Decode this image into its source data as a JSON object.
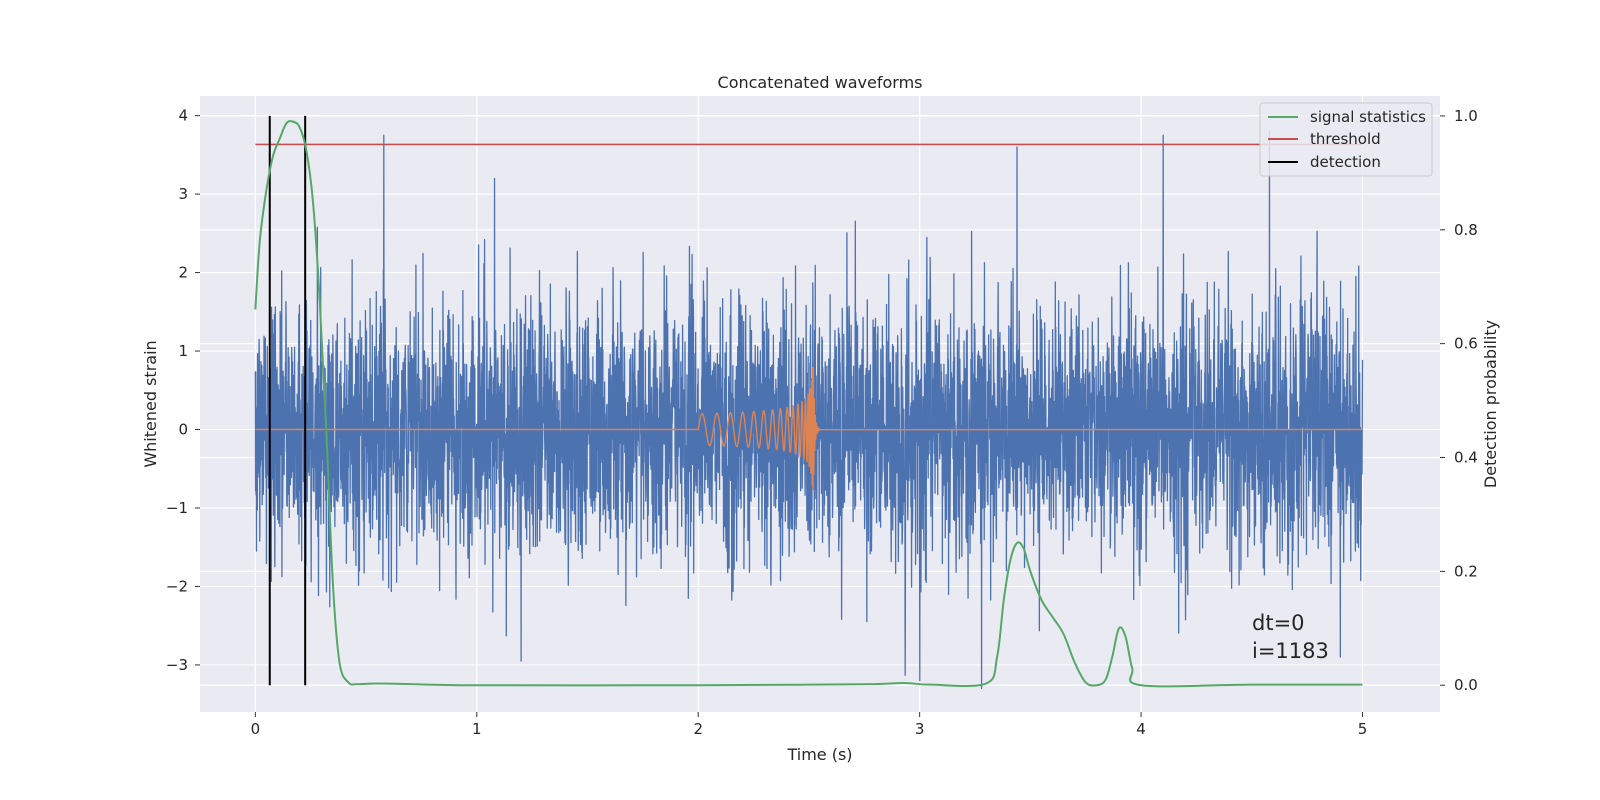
{
  "chart_data": {
    "type": "line",
    "title": "Concatenated waveforms",
    "xlabel": "Time (s)",
    "ylabel": "Whitened strain",
    "y2label": "Detection probability",
    "xlim": [
      -0.25,
      5.35
    ],
    "ylim": [
      -3.6,
      4.25
    ],
    "y2lim": [
      -0.047,
      1.035
    ],
    "xticks": [
      0,
      1,
      2,
      3,
      4,
      5
    ],
    "yticks": [
      -3,
      -2,
      -1,
      0,
      1,
      2,
      3,
      4
    ],
    "y2ticks": [
      0.0,
      0.2,
      0.4,
      0.6,
      0.8,
      1.0
    ],
    "y2tick_labels": [
      "0.0",
      "0.2",
      "0.4",
      "0.6",
      "0.8",
      "1.0"
    ],
    "grid": true,
    "legend_position": "top-right",
    "colors": {
      "background": "#eaeaf2",
      "grid": "#ffffff",
      "noise": "#4c72b0",
      "injection": "#dd8452",
      "signal_statistics": "#55a868",
      "threshold": "#c44e52",
      "detection": "#000000"
    },
    "series": [
      {
        "name": "",
        "axis": "left",
        "kind": "whitened noise",
        "x_start": 0.0,
        "x_end": 5.0,
        "amplitude_sigma": 0.8,
        "peaks": [
          {
            "x": 0.58,
            "y": 3.75
          },
          {
            "x": 1.08,
            "y": 3.2
          },
          {
            "x": 3.44,
            "y": 3.6
          },
          {
            "x": 4.1,
            "y": 3.75
          },
          {
            "x": 4.58,
            "y": 3.8
          },
          {
            "x": 3.28,
            "y": -3.3
          },
          {
            "x": 1.2,
            "y": -2.95
          },
          {
            "x": 4.9,
            "y": -2.9
          }
        ]
      },
      {
        "name": "",
        "axis": "left",
        "kind": "chirp injection",
        "x_start": 2.0,
        "x_end": 2.55,
        "merger_x": 2.52,
        "peak_amplitude": 0.8,
        "start_amplitude": 0.1
      },
      {
        "name": "signal statistics",
        "axis": "right",
        "x": [
          0.0,
          0.02,
          0.05,
          0.08,
          0.11,
          0.14,
          0.17,
          0.2,
          0.23,
          0.26,
          0.29,
          0.32,
          0.35,
          0.38,
          0.42,
          0.46,
          0.55,
          0.7,
          1.0,
          2.0,
          2.5,
          2.8,
          2.93,
          3.05,
          3.3,
          3.35,
          3.38,
          3.41,
          3.44,
          3.47,
          3.5,
          3.55,
          3.6,
          3.65,
          3.7,
          3.75,
          3.8,
          3.84,
          3.87,
          3.9,
          3.93,
          3.96,
          4.0,
          4.5,
          5.0
        ],
        "y": [
          0.66,
          0.78,
          0.87,
          0.93,
          0.96,
          0.987,
          0.99,
          0.98,
          0.94,
          0.85,
          0.68,
          0.45,
          0.18,
          0.04,
          0.005,
          0.002,
          0.003,
          0.002,
          0.0,
          0.0,
          0.001,
          0.002,
          0.004,
          0.001,
          0.003,
          0.05,
          0.15,
          0.22,
          0.25,
          0.24,
          0.2,
          0.15,
          0.12,
          0.09,
          0.04,
          0.005,
          0.0,
          0.01,
          0.05,
          0.1,
          0.085,
          0.03,
          0.0,
          0.001,
          0.001
        ]
      },
      {
        "name": "threshold",
        "axis": "right",
        "x": [
          0.0,
          5.0
        ],
        "y": [
          0.95,
          0.95
        ]
      },
      {
        "name": "detection",
        "axis": "right",
        "vlines": [
          0.065,
          0.225
        ],
        "ymin": 0.0,
        "ymax": 1.0
      }
    ],
    "annotations": [
      "dt=0",
      "i=1183"
    ],
    "annotation_anchor": {
      "x": 4.5,
      "y": 0.113
    }
  }
}
